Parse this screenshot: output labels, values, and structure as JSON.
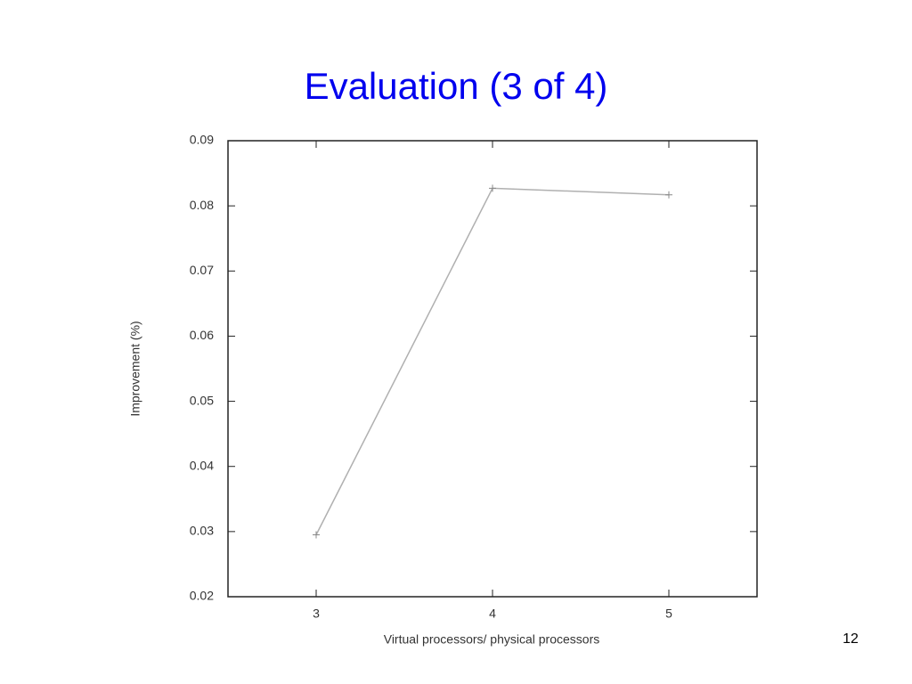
{
  "slide_number": "12",
  "chart_data": {
    "type": "line",
    "title": "Evaluation (3 of 4)",
    "x_label": "Virtual processors/ physical processors",
    "y_label": "Improvement (%)",
    "x": [
      3,
      4,
      5
    ],
    "values": [
      0.0295,
      0.0827,
      0.0817
    ],
    "color": "#b0b0b0",
    "xlim": [
      2.5,
      5.5
    ],
    "xticks": [
      3,
      4,
      5
    ],
    "ylim": [
      0.02,
      0.09
    ],
    "yticks": [
      0.02,
      0.03,
      0.04,
      0.05,
      0.06,
      0.07,
      0.08,
      0.09
    ]
  }
}
